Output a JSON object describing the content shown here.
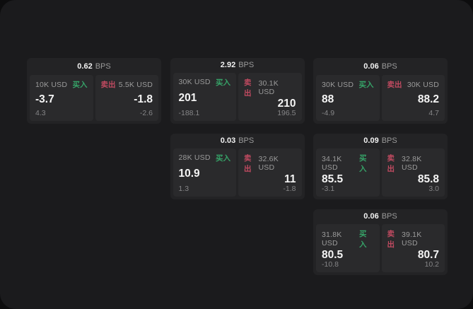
{
  "app": {
    "panel_bg": "#1b1b1d",
    "outer_bg": "#0d0d0e",
    "card_bg": "#232325",
    "tile_bg": "#2a2a2c"
  },
  "labels": {
    "buy": "买入",
    "sell": "卖出",
    "bps_unit": "BPS"
  },
  "colors": {
    "buy": "#36a368",
    "sell": "#c04a60"
  },
  "cards": [
    {
      "row": 1,
      "col": 1,
      "bps": "0.62",
      "buy": {
        "notional": "10K USD",
        "price": "-3.7",
        "delta": "4.3"
      },
      "sell": {
        "notional": "5.5K USD",
        "price": "-1.8",
        "delta": "-2.6"
      }
    },
    {
      "row": 1,
      "col": 2,
      "bps": "2.92",
      "buy": {
        "notional": "30K USD",
        "price": "201",
        "delta": "-188.1"
      },
      "sell": {
        "notional": "30.1K USD",
        "price": "210",
        "delta": "196.5"
      }
    },
    {
      "row": 1,
      "col": 3,
      "bps": "0.06",
      "buy": {
        "notional": "30K USD",
        "price": "88",
        "delta": "-4.9"
      },
      "sell": {
        "notional": "30K USD",
        "price": "88.2",
        "delta": "4.7"
      }
    },
    {
      "row": 2,
      "col": 2,
      "bps": "0.03",
      "buy": {
        "notional": "28K USD",
        "price": "10.9",
        "delta": "1.3"
      },
      "sell": {
        "notional": "32.6K USD",
        "price": "11",
        "delta": "-1.8"
      }
    },
    {
      "row": 2,
      "col": 3,
      "bps": "0.09",
      "buy": {
        "notional": "34.1K USD",
        "price": "85.5",
        "delta": "-3.1"
      },
      "sell": {
        "notional": "32.8K USD",
        "price": "85.8",
        "delta": "3.0"
      }
    },
    {
      "row": 3,
      "col": 3,
      "bps": "0.06",
      "buy": {
        "notional": "31.8K USD",
        "price": "80.5",
        "delta": "-10.8"
      },
      "sell": {
        "notional": "39.1K USD",
        "price": "80.7",
        "delta": "10.2"
      }
    }
  ]
}
